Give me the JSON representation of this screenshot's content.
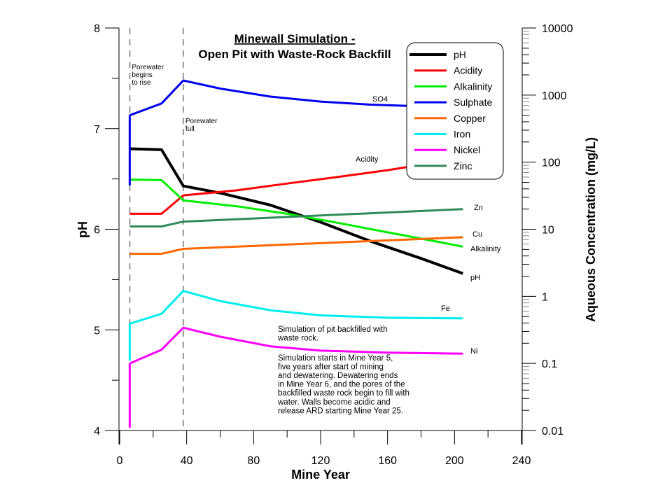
{
  "chart_data": {
    "type": "line",
    "title_line1": "Minewall Simulation -",
    "title_line2": "Open Pit with Waste-Rock Backfill",
    "xlabel": "Mine Year",
    "ylabel_left": "pH",
    "ylabel_right": "Aqueous Concentration (mg/L)",
    "xlim": [
      0,
      240
    ],
    "xticks": [
      0,
      40,
      80,
      120,
      160,
      200,
      240
    ],
    "xtick_labels": [
      "0",
      "40",
      "80",
      "120",
      "160",
      "200",
      "240"
    ],
    "ylim_left": [
      4,
      8
    ],
    "yticks_left": [
      4,
      5,
      6,
      7,
      8
    ],
    "ytick_labels_left": [
      "4",
      "5",
      "6",
      "7",
      "8"
    ],
    "ylim_right": [
      0.01,
      10000
    ],
    "yscale_right": "log",
    "yticks_right": [
      0.01,
      0.1,
      1,
      10,
      100,
      1000,
      10000
    ],
    "ytick_labels_right": [
      "0.01",
      "0.1",
      "1",
      "10",
      "100",
      "1000",
      "10000"
    ],
    "grid": false,
    "legend_position": "top-right",
    "series": [
      {
        "name": "pH",
        "color": "#000000",
        "axis": "left",
        "label": "pH",
        "x": [
          6,
          25,
          38,
          60,
          90,
          120,
          150,
          180,
          205
        ],
        "y": [
          6.8,
          6.79,
          6.43,
          6.36,
          6.24,
          6.07,
          5.88,
          5.71,
          5.56
        ]
      },
      {
        "name": "Acidity",
        "color": "#ff0000",
        "axis": "right",
        "label": "Acidity",
        "x": [
          6,
          25,
          38,
          70,
          100,
          130,
          160,
          190,
          205
        ],
        "y": [
          17,
          17,
          32,
          38,
          48,
          60,
          76,
          100,
          120
        ]
      },
      {
        "name": "Alkalinity",
        "color": "#00ee00",
        "axis": "right",
        "label": "Alkalinity",
        "x": [
          6,
          25,
          38,
          70,
          100,
          130,
          160,
          190,
          205
        ],
        "y": [
          55,
          54,
          27,
          22,
          17,
          12.5,
          9,
          6.5,
          5.5
        ]
      },
      {
        "name": "Sulphate",
        "color": "#0000ee",
        "axis": "right",
        "label": "SO4",
        "x": [
          6,
          25,
          38,
          60,
          90,
          120,
          150,
          180,
          205
        ],
        "y": [
          500,
          750,
          1650,
          1250,
          950,
          800,
          720,
          680,
          660
        ]
      },
      {
        "name": "Copper",
        "color": "#ff6600",
        "axis": "right",
        "label": "Cu",
        "x": [
          6,
          25,
          38,
          205
        ],
        "y": [
          4.3,
          4.3,
          5.1,
          7.6
        ]
      },
      {
        "name": "Iron",
        "color": "#00eeee",
        "axis": "right",
        "label": "Fe",
        "x": [
          6,
          25,
          38,
          60,
          90,
          120,
          160,
          205
        ],
        "y": [
          0.39,
          0.55,
          1.2,
          0.85,
          0.62,
          0.52,
          0.48,
          0.47
        ]
      },
      {
        "name": "Nickel",
        "color": "#ff00ff",
        "axis": "right",
        "label": "Ni",
        "x": [
          6,
          25,
          38,
          60,
          90,
          120,
          160,
          205
        ],
        "y": [
          0.1,
          0.16,
          0.34,
          0.25,
          0.18,
          0.155,
          0.145,
          0.14
        ]
      },
      {
        "name": "Zinc",
        "color": "#2e8b57",
        "axis": "right",
        "label": "Zn",
        "x": [
          6,
          25,
          38,
          205
        ],
        "y": [
          11,
          11,
          13,
          20
        ]
      }
    ],
    "vertical_markers": [
      {
        "x": 6,
        "label_lines": [
          "Porewater",
          "begins",
          "to rise"
        ]
      },
      {
        "x": 38,
        "label_lines": [
          "Porewater",
          "full"
        ]
      }
    ],
    "annotation_lines": [
      "Simulation of pit backfilled with",
      "waste rock.",
      "",
      "Simulation starts in Mine Year 5,",
      "five years after start of mining",
      "and dewatering.  Dewatering ends",
      "in Mine Year 6, and the pores of the",
      "backfilled waste rock begin to fill with",
      "water.  Walls become acidic and",
      "release ARD starting Mine Year 25."
    ]
  }
}
